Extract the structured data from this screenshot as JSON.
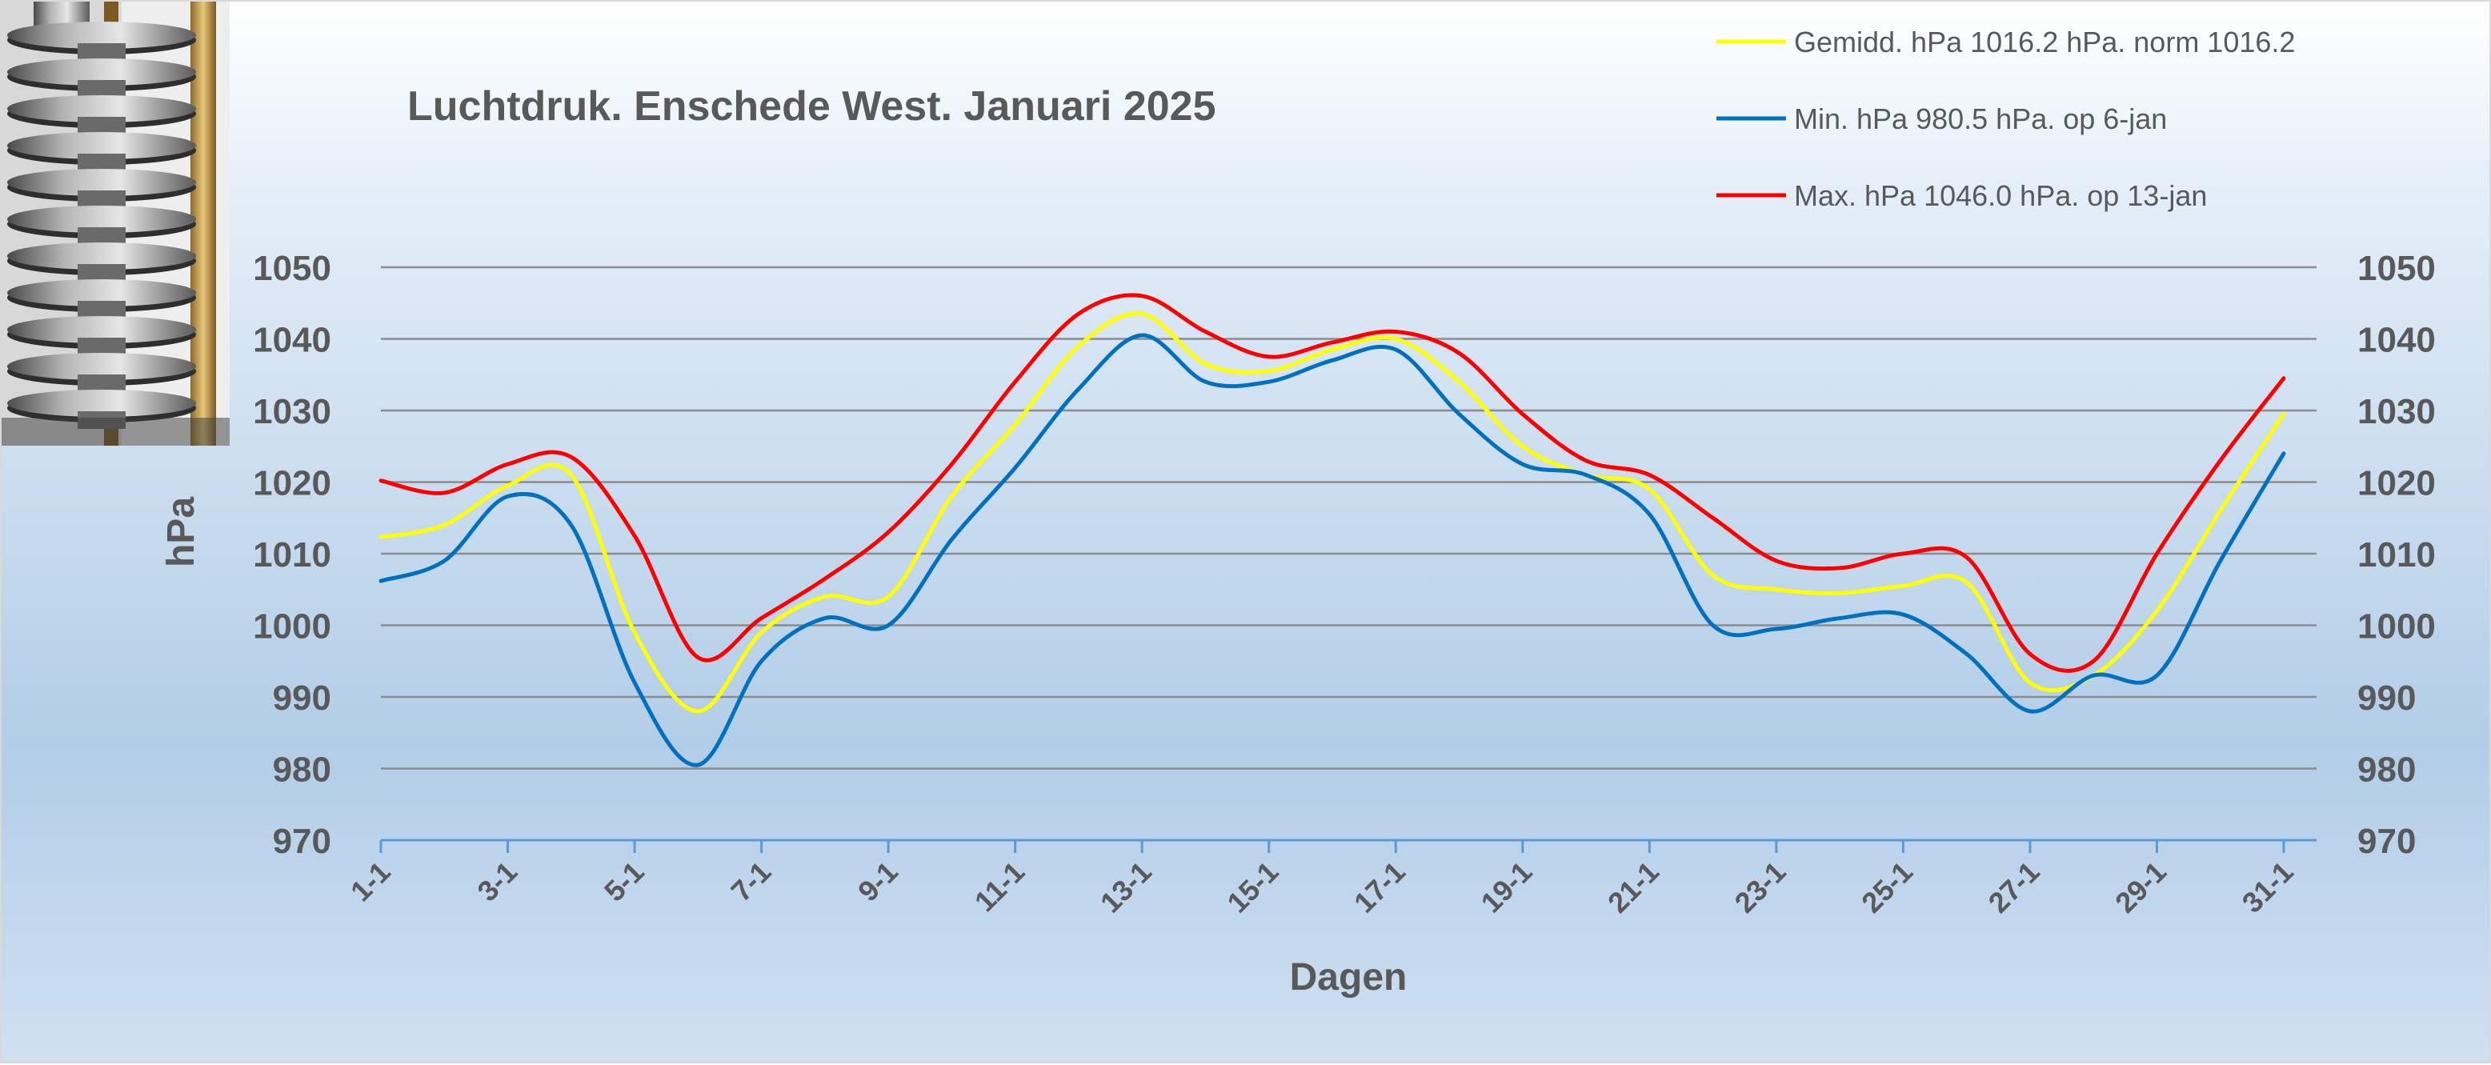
{
  "chart_data": {
    "type": "line",
    "title": "Luchtdruk. Enschede West. Januari 2025",
    "xlabel": "Dagen",
    "ylabel": "hPa",
    "ylim": [
      970,
      1050
    ],
    "yticks": [
      970,
      980,
      990,
      1000,
      1010,
      1020,
      1030,
      1040,
      1050
    ],
    "grid": true,
    "secondary_y_axis": true,
    "legend_position": "top-right",
    "x": [
      "1-1",
      "2-1",
      "3-1",
      "4-1",
      "5-1",
      "6-1",
      "7-1",
      "8-1",
      "9-1",
      "10-1",
      "11-1",
      "12-1",
      "13-1",
      "14-1",
      "15-1",
      "16-1",
      "17-1",
      "18-1",
      "19-1",
      "20-1",
      "21-1",
      "22-1",
      "23-1",
      "24-1",
      "25-1",
      "26-1",
      "27-1",
      "28-1",
      "29-1",
      "30-1",
      "31-1"
    ],
    "xtick_labels": [
      "1-1",
      "3-1",
      "5-1",
      "7-1",
      "9-1",
      "11-1",
      "13-1",
      "15-1",
      "17-1",
      "19-1",
      "21-1",
      "23-1",
      "25-1",
      "27-1",
      "29-1",
      "31-1"
    ],
    "series": [
      {
        "name": "Gemidd. hPa 1016.2 hPa.  norm 1016.2",
        "color": "#ffff00",
        "values": [
          1012.3,
          1014.0,
          1019.5,
          1021.0,
          999.0,
          988.0,
          999.0,
          1004.0,
          1004.0,
          1018.0,
          1028.0,
          1039.0,
          1043.5,
          1036.5,
          1035.5,
          1038.5,
          1040.0,
          1034.0,
          1025.0,
          1021.0,
          1019.0,
          1007.0,
          1005.0,
          1004.5,
          1005.5,
          1006.0,
          992.0,
          993.0,
          1002.0,
          1016.0,
          1029.5
        ]
      },
      {
        "name": "Min. hPa 980.5 hPa. op 6-jan",
        "color": "#0070c0",
        "values": [
          1006.2,
          1009.0,
          1018.0,
          1014.0,
          992.0,
          980.5,
          995.0,
          1001.0,
          1000.0,
          1012.0,
          1022.0,
          1033.0,
          1040.5,
          1034.0,
          1034.0,
          1037.0,
          1038.5,
          1029.5,
          1022.5,
          1021.0,
          1015.5,
          1000.0,
          999.5,
          1001.0,
          1001.5,
          996.0,
          988.0,
          993.0,
          993.0,
          1009.0,
          1024.0
        ]
      },
      {
        "name": "Max. hPa 1046.0 hPa.  op 13-jan",
        "color": "#ff0000",
        "values": [
          1020.2,
          1018.5,
          1022.5,
          1023.5,
          1012.5,
          995.5,
          1001.0,
          1006.5,
          1013.0,
          1022.5,
          1034.0,
          1043.5,
          1046.0,
          1041.0,
          1037.5,
          1039.5,
          1041.0,
          1038.0,
          1029.5,
          1023.0,
          1021.0,
          1015.0,
          1009.0,
          1008.0,
          1010.0,
          1009.5,
          996.0,
          995.0,
          1010.0,
          1023.0,
          1034.5
        ]
      }
    ]
  },
  "photo": {
    "icon": "barometer-aneroid-capsules-photo",
    "colors": {
      "metal": "#8c8c8c",
      "brass": "#c8a050",
      "background": "#ffffff"
    }
  },
  "colors": {
    "grid": "#8c8c8c",
    "axis": "#5b9bd5",
    "text": "#595959"
  }
}
